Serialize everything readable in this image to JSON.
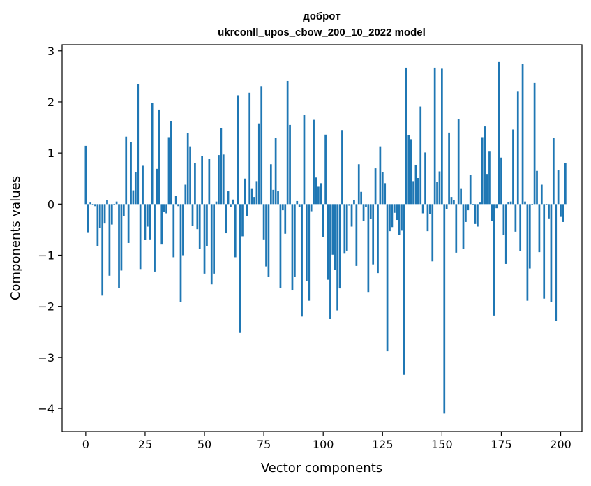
{
  "chart_data": {
    "type": "bar",
    "title": "добрoт",
    "subtitle": "ukrconll_upos_cbow_200_10_2022 model",
    "xlabel": "Vector components",
    "ylabel": "Components values",
    "xlim": [
      -9.95,
      208.95
    ],
    "ylim": [
      -4.45,
      3.12
    ],
    "xticks": [
      0,
      25,
      50,
      75,
      100,
      125,
      150,
      175,
      200
    ],
    "yticks": [
      -4,
      -3,
      -2,
      -1,
      0,
      1,
      2,
      3
    ],
    "color": "#1f77b4",
    "values": [
      1.14,
      -0.55,
      0.03,
      -0.02,
      -0.04,
      -0.82,
      -0.47,
      -1.79,
      -0.38,
      0.08,
      -1.4,
      -0.4,
      -0.02,
      0.05,
      -1.64,
      -1.3,
      -0.24,
      1.32,
      -0.76,
      1.21,
      0.27,
      0.63,
      2.35,
      -1.27,
      0.75,
      -0.7,
      -0.44,
      -0.69,
      1.98,
      -1.32,
      0.69,
      1.85,
      -0.79,
      -0.15,
      -0.18,
      1.31,
      1.62,
      -1.04,
      0.16,
      -0.04,
      -1.92,
      -1.0,
      0.38,
      1.39,
      1.13,
      -0.42,
      0.81,
      -0.49,
      -0.88,
      0.94,
      -1.36,
      -0.82,
      0.89,
      -1.57,
      -1.36,
      0.05,
      0.96,
      1.49,
      0.97,
      -0.57,
      0.25,
      -0.05,
      0.09,
      -1.04,
      2.13,
      -2.52,
      -0.63,
      0.5,
      -0.24,
      2.18,
      0.31,
      0.14,
      0.45,
      1.58,
      2.31,
      -0.69,
      -1.22,
      -1.43,
      0.78,
      0.28,
      1.3,
      0.25,
      -1.64,
      -0.12,
      -0.58,
      2.41,
      1.55,
      -1.69,
      -1.42,
      0.06,
      -0.06,
      -2.2,
      1.74,
      -1.51,
      -1.89,
      -0.14,
      1.65,
      0.52,
      0.34,
      0.41,
      -0.65,
      1.36,
      -1.48,
      -2.25,
      -0.99,
      -1.28,
      -2.08,
      -1.65,
      1.45,
      -0.97,
      -0.91,
      -0.03,
      -0.44,
      0.08,
      -1.21,
      0.78,
      0.24,
      -0.33,
      -0.05,
      -1.72,
      -0.29,
      -1.18,
      0.7,
      -1.35,
      1.13,
      0.63,
      0.41,
      -2.88,
      -0.53,
      -0.45,
      -0.17,
      -0.31,
      -0.6,
      -0.52,
      -3.34,
      2.67,
      1.35,
      1.27,
      0.45,
      0.77,
      0.51,
      1.91,
      -0.18,
      1.01,
      -0.53,
      -0.19,
      -1.12,
      2.67,
      0.44,
      0.64,
      2.65,
      -4.1,
      -0.1,
      1.4,
      0.14,
      0.08,
      -0.95,
      1.67,
      0.31,
      -0.87,
      -0.35,
      -0.12,
      0.57,
      -0.02,
      -0.39,
      -0.44,
      0.03,
      1.31,
      1.52,
      0.59,
      1.04,
      -0.33,
      -2.18,
      -0.08,
      2.78,
      0.91,
      -0.6,
      -1.17,
      0.04,
      0.05,
      1.46,
      -0.54,
      2.2,
      -0.92,
      2.75,
      0.05,
      -1.89,
      -1.26,
      -0.01,
      2.37,
      0.65,
      -0.94,
      0.38,
      -1.85,
      -0.01,
      -0.28,
      -1.92,
      1.3,
      -2.28,
      0.66,
      -0.25,
      -0.35,
      0.81
    ]
  }
}
